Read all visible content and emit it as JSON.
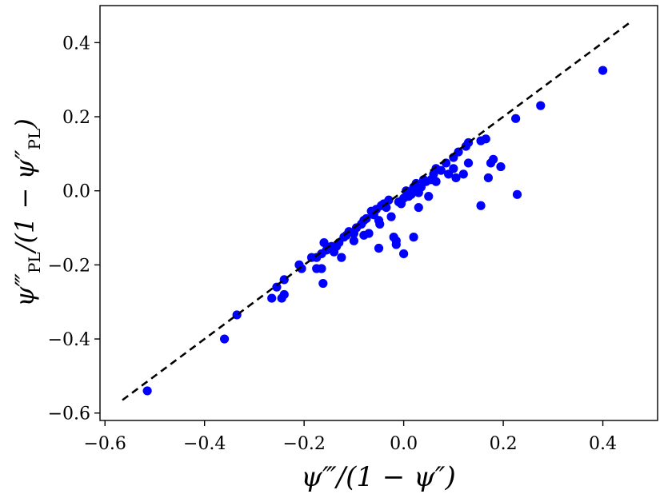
{
  "chart_data": {
    "type": "scatter",
    "xlabel": "ψ‴/(1 − ψ″)",
    "ylabel": "ψ‴PL/(1 − ψ″PL)",
    "xlim": [
      -0.61,
      0.51
    ],
    "ylim": [
      -0.62,
      0.5
    ],
    "x_ticks": [
      -0.6,
      -0.4,
      -0.2,
      0.0,
      0.2,
      0.4
    ],
    "y_ticks": [
      -0.6,
      -0.4,
      -0.2,
      0.0,
      0.2,
      0.4
    ],
    "x_tick_labels": [
      "−0.6",
      "−0.4",
      "−0.2",
      "0.0",
      "0.2",
      "0.4"
    ],
    "y_tick_labels": [
      "−0.6",
      "−0.4",
      "−0.2",
      "0.0",
      "0.2",
      "0.4"
    ],
    "grid": false,
    "marker_color": "#0000ff",
    "reference_line": {
      "x": [
        -0.565,
        0.455
      ],
      "y": [
        -0.565,
        0.455
      ],
      "style": "dashed",
      "color": "#000000"
    },
    "points": [
      [
        -0.515,
        -0.54
      ],
      [
        -0.36,
        -0.4
      ],
      [
        -0.335,
        -0.335
      ],
      [
        -0.265,
        -0.29
      ],
      [
        -0.255,
        -0.26
      ],
      [
        -0.245,
        -0.29
      ],
      [
        -0.24,
        -0.28
      ],
      [
        -0.24,
        -0.24
      ],
      [
        -0.21,
        -0.2
      ],
      [
        -0.205,
        -0.21
      ],
      [
        -0.185,
        -0.18
      ],
      [
        -0.175,
        -0.21
      ],
      [
        -0.175,
        -0.18
      ],
      [
        -0.165,
        -0.21
      ],
      [
        -0.165,
        -0.17
      ],
      [
        -0.16,
        -0.14
      ],
      [
        -0.162,
        -0.25
      ],
      [
        -0.155,
        -0.16
      ],
      [
        -0.145,
        -0.15
      ],
      [
        -0.14,
        -0.165
      ],
      [
        -0.135,
        -0.15
      ],
      [
        -0.13,
        -0.14
      ],
      [
        -0.125,
        -0.18
      ],
      [
        -0.12,
        -0.125
      ],
      [
        -0.115,
        -0.12
      ],
      [
        -0.11,
        -0.11
      ],
      [
        -0.1,
        -0.115
      ],
      [
        -0.1,
        -0.135
      ],
      [
        -0.095,
        -0.1
      ],
      [
        -0.085,
        -0.09
      ],
      [
        -0.08,
        -0.08
      ],
      [
        -0.08,
        -0.12
      ],
      [
        -0.075,
        -0.075
      ],
      [
        -0.07,
        -0.115
      ],
      [
        -0.065,
        -0.055
      ],
      [
        -0.06,
        -0.065
      ],
      [
        -0.055,
        -0.05
      ],
      [
        -0.05,
        -0.155
      ],
      [
        -0.05,
        -0.08
      ],
      [
        -0.048,
        -0.09
      ],
      [
        -0.045,
        -0.04
      ],
      [
        -0.04,
        -0.035
      ],
      [
        -0.035,
        -0.045
      ],
      [
        -0.03,
        -0.025
      ],
      [
        -0.025,
        -0.07
      ],
      [
        -0.02,
        -0.125
      ],
      [
        -0.015,
        -0.135
      ],
      [
        -0.015,
        -0.145
      ],
      [
        -0.01,
        -0.03
      ],
      [
        -0.005,
        -0.035
      ],
      [
        0.0,
        -0.02
      ],
      [
        0.0,
        -0.17
      ],
      [
        0.005,
        0.0
      ],
      [
        0.01,
        -0.015
      ],
      [
        0.015,
        -0.01
      ],
      [
        0.02,
        0.01
      ],
      [
        0.02,
        -0.125
      ],
      [
        0.025,
        0.02
      ],
      [
        0.03,
        -0.045
      ],
      [
        0.03,
        -0.005
      ],
      [
        0.035,
        0.01
      ],
      [
        0.04,
        0.03
      ],
      [
        0.045,
        0.025
      ],
      [
        0.05,
        -0.015
      ],
      [
        0.055,
        0.03
      ],
      [
        0.06,
        0.045
      ],
      [
        0.065,
        0.025
      ],
      [
        0.065,
        0.06
      ],
      [
        0.075,
        0.055
      ],
      [
        0.085,
        0.075
      ],
      [
        0.09,
        0.045
      ],
      [
        0.1,
        0.09
      ],
      [
        0.1,
        0.06
      ],
      [
        0.105,
        0.035
      ],
      [
        0.11,
        0.105
      ],
      [
        0.12,
        0.045
      ],
      [
        0.125,
        0.12
      ],
      [
        0.13,
        0.075
      ],
      [
        0.13,
        0.13
      ],
      [
        0.155,
        -0.04
      ],
      [
        0.155,
        0.135
      ],
      [
        0.165,
        0.14
      ],
      [
        0.17,
        0.035
      ],
      [
        0.175,
        0.075
      ],
      [
        0.18,
        0.085
      ],
      [
        0.195,
        0.065
      ],
      [
        0.225,
        0.195
      ],
      [
        0.228,
        -0.01
      ],
      [
        0.275,
        0.23
      ],
      [
        0.4,
        0.325
      ]
    ]
  }
}
